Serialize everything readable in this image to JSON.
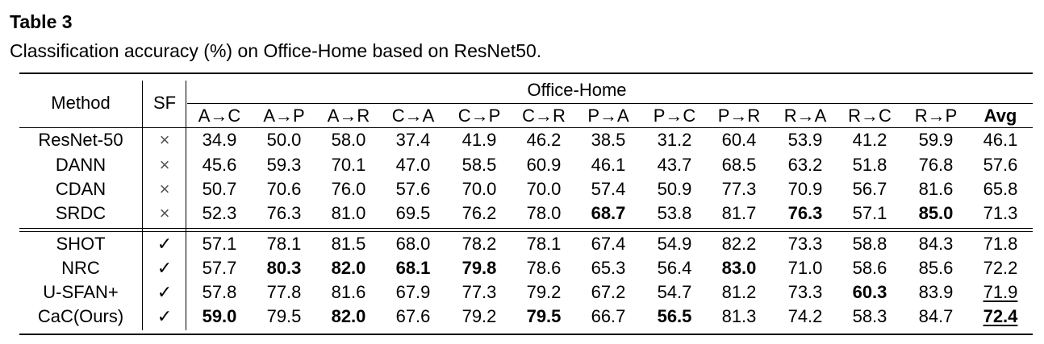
{
  "caption": {
    "label": "Table 3",
    "text": "Classification accuracy (%) on Office-Home based on ResNet50."
  },
  "header": {
    "method": "Method",
    "sf": "SF",
    "group": "Office-Home",
    "columns": [
      "A→C",
      "A→P",
      "A→R",
      "C→A",
      "C→P",
      "C→R",
      "P→A",
      "P→C",
      "P→R",
      "R→A",
      "R→C",
      "R→P",
      "Avg"
    ]
  },
  "section1": [
    {
      "method": "ResNet-50",
      "sf": "×",
      "values": [
        "34.9",
        "50.0",
        "58.0",
        "37.4",
        "41.9",
        "46.2",
        "38.5",
        "31.2",
        "60.4",
        "53.9",
        "41.2",
        "59.9",
        "46.1"
      ],
      "bold": [],
      "underline": []
    },
    {
      "method": "DANN",
      "sf": "×",
      "values": [
        "45.6",
        "59.3",
        "70.1",
        "47.0",
        "58.5",
        "60.9",
        "46.1",
        "43.7",
        "68.5",
        "63.2",
        "51.8",
        "76.8",
        "57.6"
      ],
      "bold": [],
      "underline": []
    },
    {
      "method": "CDAN",
      "sf": "×",
      "values": [
        "50.7",
        "70.6",
        "76.0",
        "57.6",
        "70.0",
        "70.0",
        "57.4",
        "50.9",
        "77.3",
        "70.9",
        "56.7",
        "81.6",
        "65.8"
      ],
      "bold": [],
      "underline": []
    },
    {
      "method": "SRDC",
      "sf": "×",
      "values": [
        "52.3",
        "76.3",
        "81.0",
        "69.5",
        "76.2",
        "78.0",
        "68.7",
        "53.8",
        "81.7",
        "76.3",
        "57.1",
        "85.0",
        "71.3"
      ],
      "bold": [
        6,
        9,
        11
      ],
      "underline": []
    }
  ],
  "section2": [
    {
      "method": "SHOT",
      "sf": "✓",
      "values": [
        "57.1",
        "78.1",
        "81.5",
        "68.0",
        "78.2",
        "78.1",
        "67.4",
        "54.9",
        "82.2",
        "73.3",
        "58.8",
        "84.3",
        "71.8"
      ],
      "bold": [],
      "underline": []
    },
    {
      "method": "NRC",
      "sf": "✓",
      "values": [
        "57.7",
        "80.3",
        "82.0",
        "68.1",
        "79.8",
        "78.6",
        "65.3",
        "56.4",
        "83.0",
        "71.0",
        "58.6",
        "85.6",
        "72.2"
      ],
      "bold": [
        1,
        2,
        3,
        4,
        8
      ],
      "underline": []
    },
    {
      "method": "U-SFAN+",
      "sf": "✓",
      "values": [
        "57.8",
        "77.8",
        "81.6",
        "67.9",
        "77.3",
        "79.2",
        "67.2",
        "54.7",
        "81.2",
        "73.3",
        "60.3",
        "83.9",
        "71.9"
      ],
      "bold": [
        10
      ],
      "underline": [
        12
      ]
    },
    {
      "method": "CaC(Ours)",
      "sf": "✓",
      "values": [
        "59.0",
        "79.5",
        "82.0",
        "67.6",
        "79.2",
        "79.5",
        "66.7",
        "56.5",
        "81.3",
        "74.2",
        "58.3",
        "84.7",
        "72.4"
      ],
      "bold": [
        0,
        2,
        5,
        7,
        12
      ],
      "underline": [
        12
      ]
    }
  ]
}
